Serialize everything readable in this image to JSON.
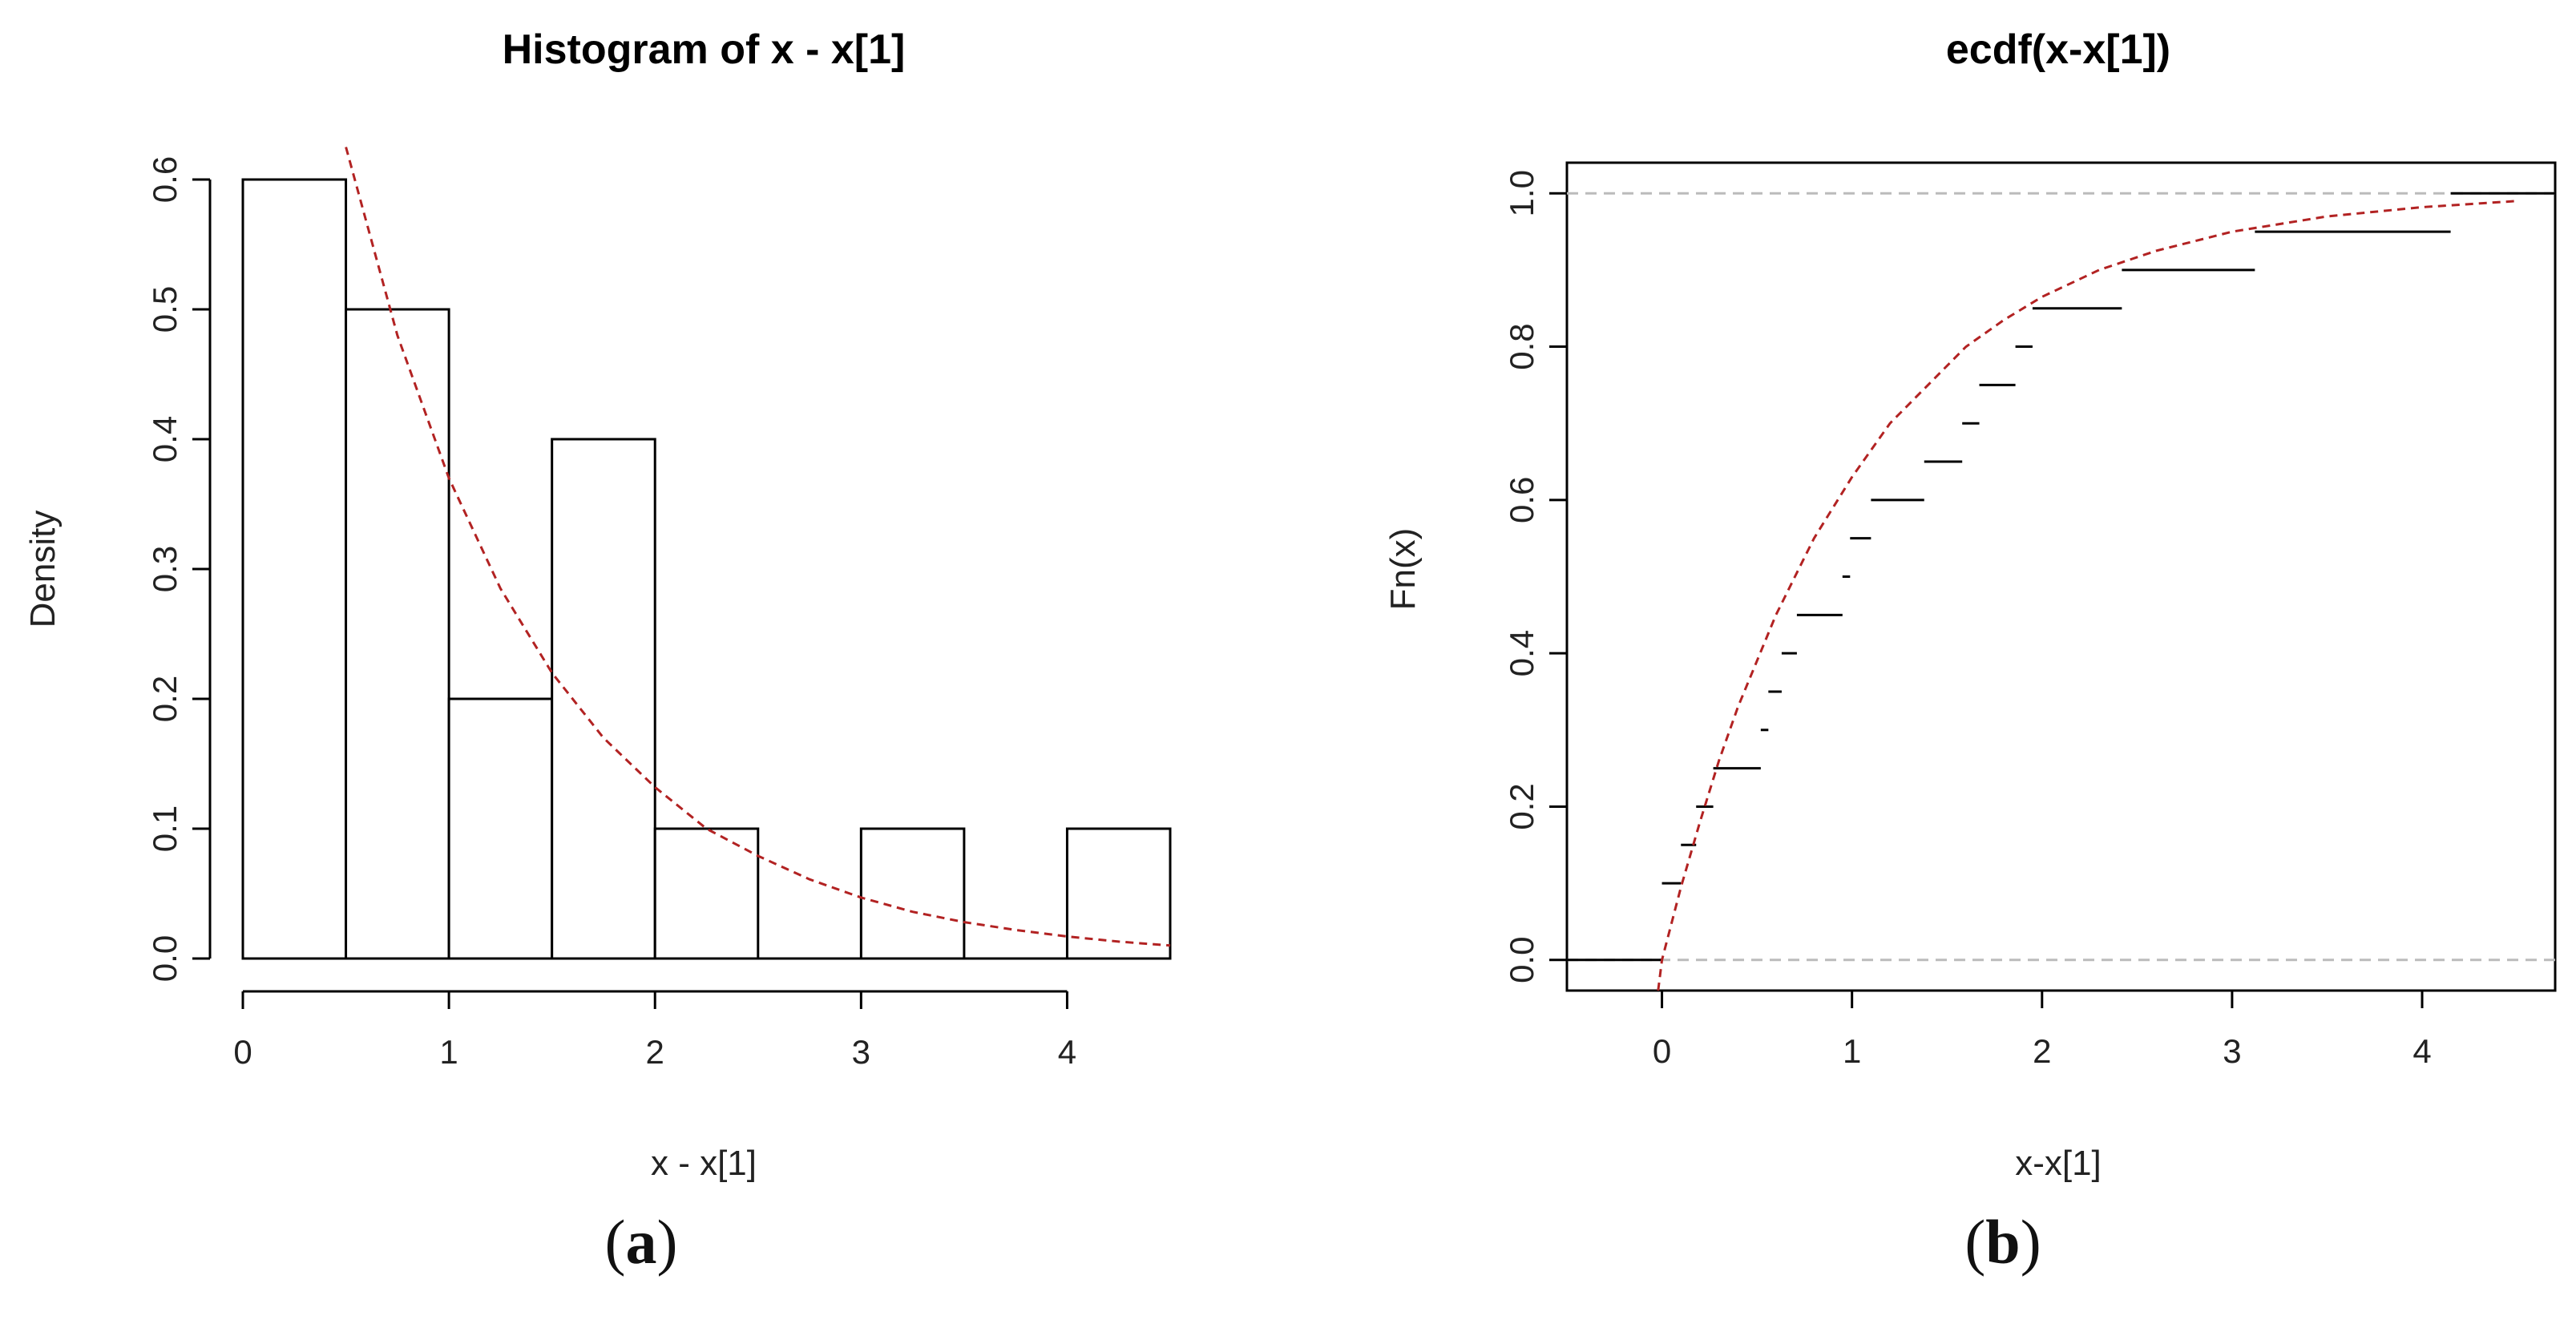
{
  "figure": {
    "panels": [
      {
        "label": "a",
        "open": "(",
        "close": ")"
      },
      {
        "label": "b",
        "open": "(",
        "close": ")"
      }
    ]
  },
  "chart_data": [
    {
      "type": "bar",
      "title": "Histogram of x - x[1]",
      "xlabel": "x - x[1]",
      "ylabel": "Density",
      "xlim": [
        0,
        4.5
      ],
      "ylim": [
        0,
        0.6
      ],
      "xticks": [
        "0",
        "1",
        "2",
        "3",
        "4"
      ],
      "xtick_values": [
        0,
        1,
        2,
        3,
        4
      ],
      "yticks": [
        "0.0",
        "0.1",
        "0.2",
        "0.3",
        "0.4",
        "0.5",
        "0.6"
      ],
      "ytick_values": [
        0,
        0.1,
        0.2,
        0.3,
        0.4,
        0.5,
        0.6
      ],
      "bins": [
        {
          "from": 0.0,
          "to": 0.5,
          "density": 0.6
        },
        {
          "from": 0.5,
          "to": 1.0,
          "density": 0.5
        },
        {
          "from": 1.0,
          "to": 1.5,
          "density": 0.2
        },
        {
          "from": 1.5,
          "to": 2.0,
          "density": 0.4
        },
        {
          "from": 2.0,
          "to": 2.5,
          "density": 0.1
        },
        {
          "from": 2.5,
          "to": 3.0,
          "density": 0.0
        },
        {
          "from": 3.0,
          "to": 3.5,
          "density": 0.1
        },
        {
          "from": 3.5,
          "to": 4.0,
          "density": 0.0
        },
        {
          "from": 4.0,
          "to": 4.5,
          "density": 0.1
        }
      ],
      "curve": {
        "style": "dashed",
        "color": "#b22222",
        "points": [
          [
            0.5,
            0.625
          ],
          [
            0.75,
            0.48
          ],
          [
            1.0,
            0.37
          ],
          [
            1.25,
            0.285
          ],
          [
            1.5,
            0.22
          ],
          [
            1.75,
            0.17
          ],
          [
            2.0,
            0.132
          ],
          [
            2.25,
            0.1
          ],
          [
            2.5,
            0.079
          ],
          [
            2.75,
            0.061
          ],
          [
            3.0,
            0.047
          ],
          [
            3.25,
            0.036
          ],
          [
            3.5,
            0.028
          ],
          [
            3.75,
            0.022
          ],
          [
            4.0,
            0.017
          ],
          [
            4.25,
            0.013
          ],
          [
            4.5,
            0.01
          ]
        ]
      }
    },
    {
      "type": "step",
      "title": "ecdf(x-x[1])",
      "xlabel": "x-x[1]",
      "ylabel": "Fn(x)",
      "xlim": [
        -0.5,
        4.7
      ],
      "ylim": [
        -0.04,
        1.04
      ],
      "xticks": [
        "0",
        "1",
        "2",
        "3",
        "4"
      ],
      "xtick_values": [
        0,
        1,
        2,
        3,
        4
      ],
      "yticks": [
        "0.0",
        "0.2",
        "0.4",
        "0.6",
        "0.8",
        "1.0"
      ],
      "ytick_values": [
        0,
        0.2,
        0.4,
        0.6,
        0.8,
        1.0
      ],
      "reference_lines": {
        "values": [
          0,
          1
        ],
        "color": "#bbbbbb",
        "style": "dashed"
      },
      "steps": [
        {
          "x1": -0.5,
          "x2": 0.0,
          "y": 0.0
        },
        {
          "x1": 0.0,
          "x2": 0.1,
          "y": 0.1
        },
        {
          "x1": 0.1,
          "x2": 0.18,
          "y": 0.15
        },
        {
          "x1": 0.18,
          "x2": 0.27,
          "y": 0.2
        },
        {
          "x1": 0.27,
          "x2": 0.52,
          "y": 0.25
        },
        {
          "x1": 0.52,
          "x2": 0.56,
          "y": 0.3
        },
        {
          "x1": 0.56,
          "x2": 0.63,
          "y": 0.35
        },
        {
          "x1": 0.63,
          "x2": 0.71,
          "y": 0.4
        },
        {
          "x1": 0.71,
          "x2": 0.95,
          "y": 0.45
        },
        {
          "x1": 0.95,
          "x2": 0.99,
          "y": 0.5
        },
        {
          "x1": 0.99,
          "x2": 1.1,
          "y": 0.55
        },
        {
          "x1": 1.1,
          "x2": 1.38,
          "y": 0.6
        },
        {
          "x1": 1.38,
          "x2": 1.58,
          "y": 0.65
        },
        {
          "x1": 1.58,
          "x2": 1.67,
          "y": 0.7
        },
        {
          "x1": 1.67,
          "x2": 1.86,
          "y": 0.75
        },
        {
          "x1": 1.86,
          "x2": 1.95,
          "y": 0.8
        },
        {
          "x1": 1.95,
          "x2": 2.42,
          "y": 0.85
        },
        {
          "x1": 2.42,
          "x2": 3.12,
          "y": 0.9
        },
        {
          "x1": 3.12,
          "x2": 4.15,
          "y": 0.95
        },
        {
          "x1": 4.15,
          "x2": 4.7,
          "y": 1.0
        }
      ],
      "curve": {
        "style": "dashed",
        "color": "#b22222",
        "points": [
          [
            -0.02,
            -0.04
          ],
          [
            0.0,
            0.0
          ],
          [
            0.1,
            0.095
          ],
          [
            0.2,
            0.18
          ],
          [
            0.3,
            0.26
          ],
          [
            0.4,
            0.33
          ],
          [
            0.5,
            0.39
          ],
          [
            0.6,
            0.45
          ],
          [
            0.7,
            0.5
          ],
          [
            0.8,
            0.55
          ],
          [
            0.9,
            0.59
          ],
          [
            1.0,
            0.63
          ],
          [
            1.2,
            0.7
          ],
          [
            1.4,
            0.75
          ],
          [
            1.6,
            0.8
          ],
          [
            1.8,
            0.835
          ],
          [
            2.0,
            0.865
          ],
          [
            2.3,
            0.9
          ],
          [
            2.6,
            0.925
          ],
          [
            3.0,
            0.95
          ],
          [
            3.5,
            0.97
          ],
          [
            4.0,
            0.982
          ],
          [
            4.5,
            0.99
          ]
        ]
      }
    }
  ]
}
